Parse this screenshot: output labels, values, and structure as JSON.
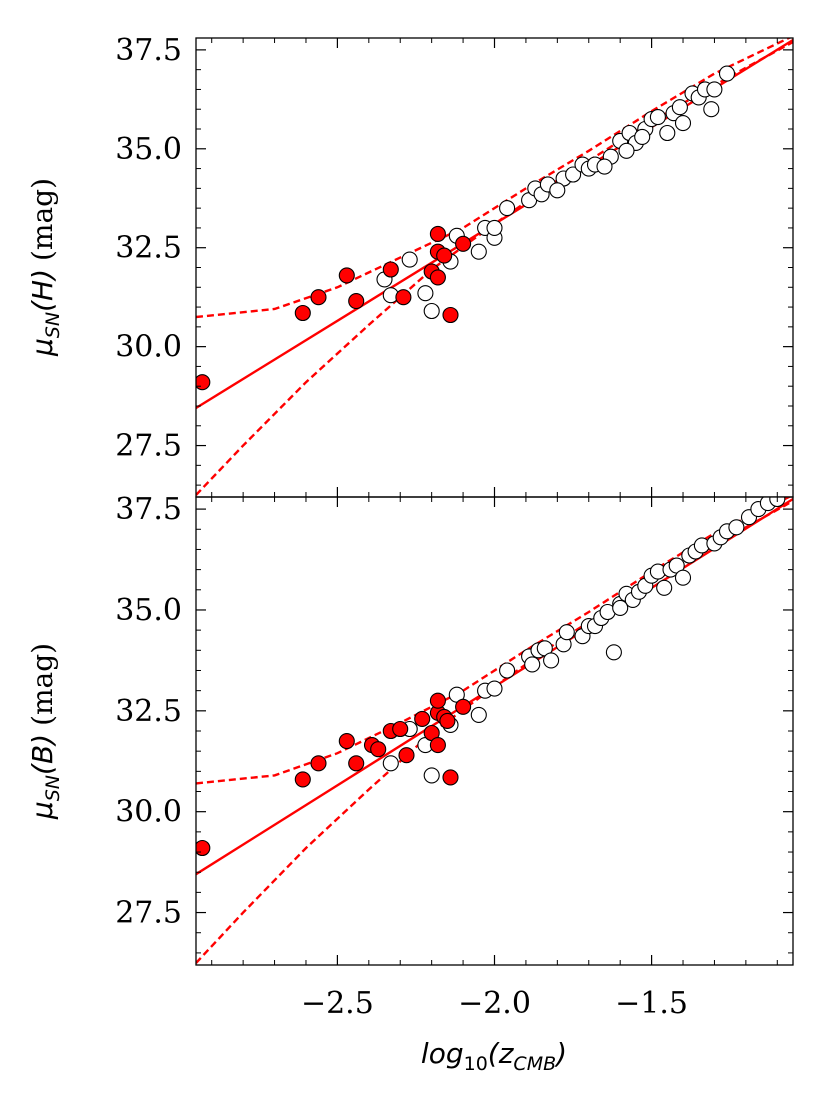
{
  "chart_data": [
    {
      "type": "scatter",
      "panel": "top",
      "ylabel_symbol": "μ",
      "ylabel_sub": "SN",
      "ylabel_arg": "(H)",
      "ylabel_unit": "(mag)",
      "xlim": [
        -2.95,
        -1.05
      ],
      "ylim": [
        26.2,
        37.8
      ],
      "yticks": [
        27.5,
        30.0,
        32.5,
        35.0,
        37.5
      ],
      "ytick_labels": [
        "27.5",
        "30.0",
        "32.5",
        "35.0",
        "37.5"
      ],
      "xticks": [
        -2.5,
        -2.0,
        -1.5
      ],
      "grid": false,
      "colors": {
        "red": "#ff0000",
        "open": "#ffffff",
        "edge": "#000000"
      },
      "red_points": [
        [
          -2.93,
          29.1
        ],
        [
          -2.61,
          30.85
        ],
        [
          -2.56,
          31.25
        ],
        [
          -2.47,
          31.8
        ],
        [
          -2.44,
          31.15
        ],
        [
          -2.33,
          31.95
        ],
        [
          -2.29,
          31.25
        ],
        [
          -2.2,
          31.9
        ],
        [
          -2.18,
          32.4
        ],
        [
          -2.18,
          32.85
        ],
        [
          -2.18,
          31.75
        ],
        [
          -2.16,
          32.3
        ],
        [
          -2.14,
          30.8
        ],
        [
          -2.1,
          32.6
        ]
      ],
      "open_points": [
        [
          -2.35,
          31.7
        ],
        [
          -2.33,
          31.3
        ],
        [
          -2.27,
          32.2
        ],
        [
          -2.22,
          31.35
        ],
        [
          -2.2,
          30.9
        ],
        [
          -2.14,
          32.15
        ],
        [
          -2.12,
          32.8
        ],
        [
          -2.05,
          32.4
        ],
        [
          -2.03,
          33.0
        ],
        [
          -2.0,
          32.75
        ],
        [
          -2.0,
          33.0
        ],
        [
          -1.96,
          33.5
        ],
        [
          -1.89,
          33.7
        ],
        [
          -1.87,
          34.0
        ],
        [
          -1.85,
          33.85
        ],
        [
          -1.83,
          34.1
        ],
        [
          -1.78,
          34.25
        ],
        [
          -1.75,
          34.35
        ],
        [
          -1.72,
          34.6
        ],
        [
          -1.7,
          34.5
        ],
        [
          -1.68,
          34.6
        ],
        [
          -1.63,
          34.8
        ],
        [
          -1.6,
          35.2
        ],
        [
          -1.57,
          35.4
        ],
        [
          -1.55,
          35.15
        ],
        [
          -1.52,
          35.5
        ],
        [
          -1.5,
          35.75
        ],
        [
          -1.48,
          35.8
        ],
        [
          -1.45,
          35.4
        ],
        [
          -1.43,
          35.9
        ],
        [
          -1.41,
          36.05
        ],
        [
          -1.4,
          35.65
        ],
        [
          -1.37,
          36.4
        ],
        [
          -1.35,
          36.3
        ],
        [
          -1.33,
          36.5
        ],
        [
          -1.31,
          36.0
        ],
        [
          -1.3,
          36.5
        ],
        [
          -1.26,
          36.9
        ],
        [
          -1.58,
          34.95
        ],
        [
          -1.65,
          34.55
        ],
        [
          -1.8,
          33.95
        ],
        [
          -1.53,
          35.3
        ]
      ],
      "fit_line": [
        [
          -2.95,
          28.45
        ],
        [
          -1.05,
          37.75
        ]
      ],
      "upper_dashed": [
        [
          -2.95,
          30.75
        ],
        [
          -2.7,
          30.95
        ],
        [
          -2.5,
          31.5
        ],
        [
          -2.3,
          32.25
        ],
        [
          -2.1,
          33.0
        ],
        [
          -1.9,
          34.0
        ],
        [
          -1.7,
          34.95
        ],
        [
          -1.5,
          35.95
        ],
        [
          -1.3,
          36.9
        ],
        [
          -1.05,
          37.85
        ]
      ],
      "lower_dashed": [
        [
          -2.95,
          26.25
        ],
        [
          -2.8,
          27.5
        ],
        [
          -2.6,
          29.1
        ],
        [
          -2.4,
          30.55
        ],
        [
          -2.2,
          31.95
        ],
        [
          -2.0,
          33.1
        ],
        [
          -1.8,
          34.2
        ],
        [
          -1.6,
          35.2
        ],
        [
          -1.4,
          36.15
        ],
        [
          -1.2,
          37.05
        ],
        [
          -1.05,
          37.7
        ]
      ]
    },
    {
      "type": "scatter",
      "panel": "bottom",
      "ylabel_symbol": "μ",
      "ylabel_sub": "SN",
      "ylabel_arg": "(B)",
      "ylabel_unit": "(mag)",
      "xlabel_main": "log",
      "xlabel_sub1": "10",
      "xlabel_mid": "(z",
      "xlabel_sub2": "CMB",
      "xlabel_end": ")",
      "xlim": [
        -2.95,
        -1.05
      ],
      "ylim": [
        26.2,
        37.8
      ],
      "yticks": [
        27.5,
        30.0,
        32.5,
        35.0,
        37.5
      ],
      "ytick_labels": [
        "27.5",
        "30.0",
        "32.5",
        "35.0",
        "37.5"
      ],
      "xticks": [
        -2.5,
        -2.0,
        -1.5
      ],
      "xtick_labels": [
        "−2.5",
        "−2.0",
        "−1.5"
      ],
      "grid": false,
      "red_points": [
        [
          -2.93,
          29.1
        ],
        [
          -2.61,
          30.8
        ],
        [
          -2.56,
          31.2
        ],
        [
          -2.47,
          31.75
        ],
        [
          -2.44,
          31.2
        ],
        [
          -2.39,
          31.65
        ],
        [
          -2.37,
          31.55
        ],
        [
          -2.33,
          32.0
        ],
        [
          -2.3,
          32.05
        ],
        [
          -2.28,
          31.4
        ],
        [
          -2.23,
          32.3
        ],
        [
          -2.2,
          31.95
        ],
        [
          -2.18,
          32.45
        ],
        [
          -2.18,
          32.75
        ],
        [
          -2.18,
          31.65
        ],
        [
          -2.16,
          32.35
        ],
        [
          -2.15,
          32.25
        ],
        [
          -2.14,
          30.85
        ],
        [
          -2.1,
          32.6
        ]
      ],
      "open_points": [
        [
          -2.33,
          31.2
        ],
        [
          -2.27,
          32.05
        ],
        [
          -2.22,
          31.65
        ],
        [
          -2.2,
          30.9
        ],
        [
          -2.14,
          32.15
        ],
        [
          -2.12,
          32.9
        ],
        [
          -2.05,
          32.4
        ],
        [
          -2.03,
          33.0
        ],
        [
          -2.0,
          33.05
        ],
        [
          -1.96,
          33.5
        ],
        [
          -1.89,
          33.85
        ],
        [
          -1.88,
          33.65
        ],
        [
          -1.86,
          34.0
        ],
        [
          -1.84,
          34.05
        ],
        [
          -1.82,
          33.75
        ],
        [
          -1.78,
          34.15
        ],
        [
          -1.77,
          34.45
        ],
        [
          -1.72,
          34.35
        ],
        [
          -1.7,
          34.6
        ],
        [
          -1.68,
          34.6
        ],
        [
          -1.66,
          34.8
        ],
        [
          -1.64,
          34.95
        ],
        [
          -1.6,
          35.15
        ],
        [
          -1.58,
          35.4
        ],
        [
          -1.56,
          35.25
        ],
        [
          -1.54,
          35.45
        ],
        [
          -1.52,
          35.6
        ],
        [
          -1.5,
          35.85
        ],
        [
          -1.48,
          35.95
        ],
        [
          -1.46,
          35.55
        ],
        [
          -1.44,
          36.0
        ],
        [
          -1.42,
          36.1
        ],
        [
          -1.4,
          35.8
        ],
        [
          -1.38,
          36.35
        ],
        [
          -1.36,
          36.45
        ],
        [
          -1.34,
          36.6
        ],
        [
          -1.3,
          36.65
        ],
        [
          -1.28,
          36.8
        ],
        [
          -1.26,
          36.95
        ],
        [
          -1.23,
          37.05
        ],
        [
          -1.19,
          37.3
        ],
        [
          -1.16,
          37.5
        ],
        [
          -1.13,
          37.65
        ],
        [
          -1.1,
          37.75
        ],
        [
          -1.62,
          33.95
        ],
        [
          -1.6,
          35.05
        ]
      ],
      "fit_line": [
        [
          -2.95,
          28.45
        ],
        [
          -1.05,
          37.75
        ]
      ],
      "upper_dashed": [
        [
          -2.95,
          30.7
        ],
        [
          -2.7,
          30.9
        ],
        [
          -2.5,
          31.45
        ],
        [
          -2.3,
          32.2
        ],
        [
          -2.1,
          33.0
        ],
        [
          -1.9,
          34.0
        ],
        [
          -1.7,
          34.95
        ],
        [
          -1.5,
          35.95
        ],
        [
          -1.3,
          36.9
        ],
        [
          -1.05,
          37.85
        ]
      ],
      "lower_dashed": [
        [
          -2.95,
          26.25
        ],
        [
          -2.8,
          27.5
        ],
        [
          -2.6,
          29.1
        ],
        [
          -2.4,
          30.55
        ],
        [
          -2.2,
          31.95
        ],
        [
          -2.0,
          33.1
        ],
        [
          -1.8,
          34.2
        ],
        [
          -1.6,
          35.2
        ],
        [
          -1.4,
          36.15
        ],
        [
          -1.2,
          37.05
        ],
        [
          -1.05,
          37.7
        ]
      ]
    }
  ]
}
